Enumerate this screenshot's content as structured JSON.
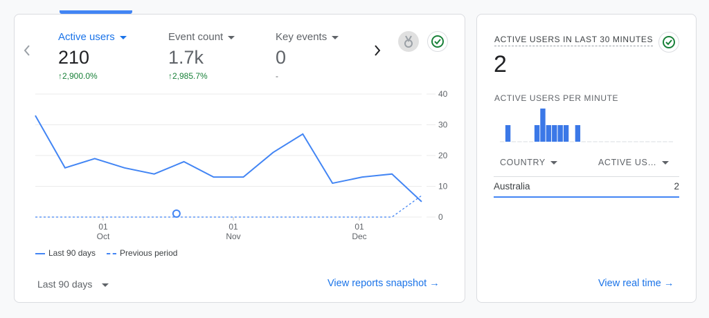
{
  "metrics": [
    {
      "label": "Active users",
      "value": "210",
      "delta": "2,900.0%",
      "trend": "up",
      "active": true
    },
    {
      "label": "Event count",
      "value": "1.7k",
      "delta": "2,985.7%",
      "trend": "up",
      "active": false
    },
    {
      "label": "Key events",
      "value": "0",
      "delta": "-",
      "trend": "none",
      "active": false
    }
  ],
  "icons": {
    "prev": "chevron-left-icon",
    "next": "chevron-right-icon",
    "insight": "medal-icon",
    "status": "check-circle-icon"
  },
  "chart_data": {
    "type": "line",
    "x_ticks": [
      {
        "day": "01",
        "month": "Oct"
      },
      {
        "day": "01",
        "month": "Nov"
      },
      {
        "day": "01",
        "month": "Dec"
      }
    ],
    "y_ticks": [
      "40",
      "30",
      "20",
      "10",
      "0"
    ],
    "ylim": [
      0,
      40
    ],
    "grid": true,
    "legend_position": "bottom-left",
    "series": [
      {
        "name": "Last 90 days",
        "style": "solid",
        "values": [
          33,
          16,
          19,
          16,
          14,
          18,
          13,
          13,
          21,
          27,
          11,
          13,
          14,
          5
        ]
      },
      {
        "name": "Previous period",
        "style": "dashed",
        "values": [
          0,
          0,
          0,
          0,
          0,
          0,
          0,
          0,
          0,
          0,
          0,
          0,
          0,
          7
        ]
      }
    ],
    "annotation_index": 5
  },
  "footer": {
    "range": "Last 90 days",
    "snapshot_link": "View reports snapshot"
  },
  "realtime": {
    "title": "ACTIVE USERS IN LAST 30 MINUTES",
    "value": "2",
    "per_minute_title": "ACTIVE USERS PER MINUTE",
    "per_minute": [
      0,
      1,
      0,
      0,
      0,
      0,
      1,
      2,
      1,
      1,
      1,
      1,
      0,
      1,
      0,
      0,
      0,
      0,
      0,
      0,
      0,
      0,
      0,
      0,
      0,
      0,
      0,
      0,
      0,
      0
    ],
    "table": {
      "col1": "COUNTRY",
      "col2": "ACTIVE US…",
      "rows": [
        {
          "country": "Australia",
          "users": "2"
        }
      ]
    },
    "link": "View real time"
  },
  "colors": {
    "accent": "#1a73e8",
    "line": "#4285f4",
    "positive": "#188038"
  }
}
